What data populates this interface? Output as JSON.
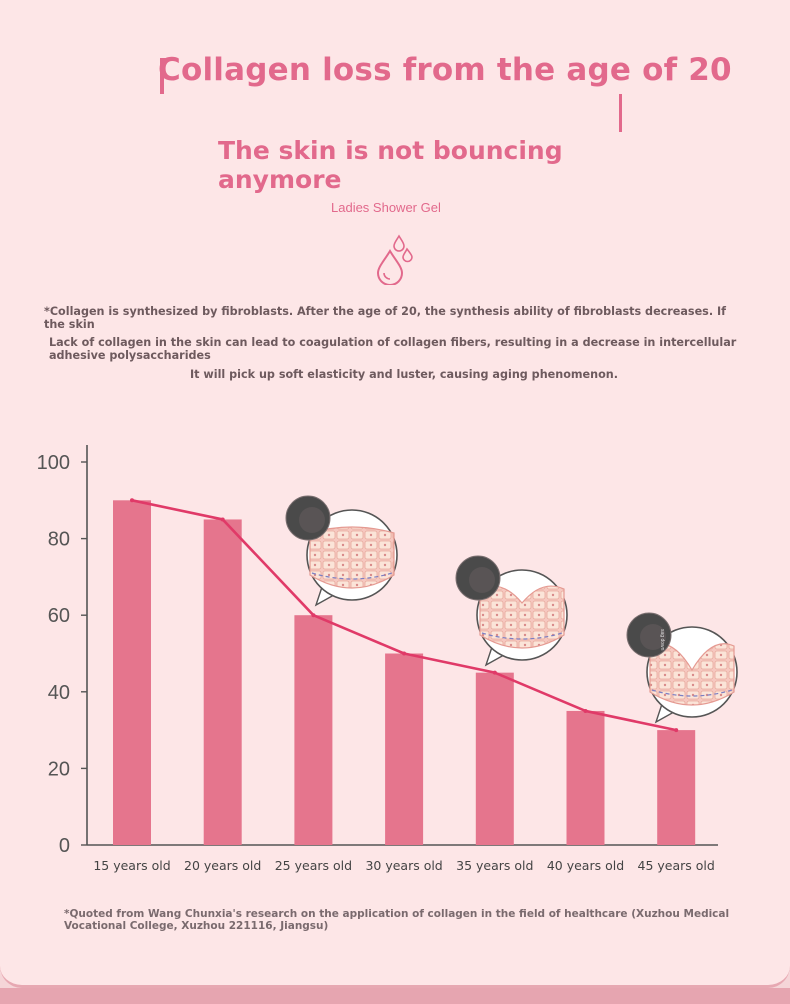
{
  "header": {
    "title": "Collagen loss from the age of 20",
    "subtitle": "The skin is not bouncing anymore",
    "tagline": "Ladies Shower Gel"
  },
  "description": {
    "line1": "*Collagen is synthesized by fibroblasts. After the age of 20, the synthesis ability of fibroblasts decreases. If the skin",
    "line2": "Lack of collagen in the skin can lead to coagulation of collagen fibers, resulting in a decrease in intercellular adhesive polysaccharides",
    "line3": "It will pick up soft elasticity and luster, causing aging phenomenon."
  },
  "footnote": "*Quoted from Wang Chunxia's research on the application of collagen in the field of healthcare (Xuzhou Medical Vocational College, Xuzhou 221116, Jiangsu)",
  "colors": {
    "accent": "#e2698c",
    "bar": "#e5758d",
    "line": "#e03a68",
    "background": "#fde6e7"
  },
  "icons": [
    "water-drop-icon",
    "skin-cross-section-icon"
  ],
  "chart_data": {
    "type": "bar",
    "categories": [
      "15 years old",
      "20 years old",
      "25 years old",
      "30 years old",
      "35 years old",
      "40 years old",
      "45 years old"
    ],
    "values": [
      90,
      85,
      60,
      50,
      45,
      35,
      30
    ],
    "overlay_line": true,
    "ylim": [
      0,
      100
    ],
    "yticks": [
      0,
      20,
      40,
      60,
      80,
      100
    ],
    "grid": false,
    "skin_illustrations_at": [
      "25 years old",
      "35 years old",
      "45 years old"
    ],
    "illustration_label": "sag down",
    "title": "",
    "xlabel": "",
    "ylabel": ""
  }
}
